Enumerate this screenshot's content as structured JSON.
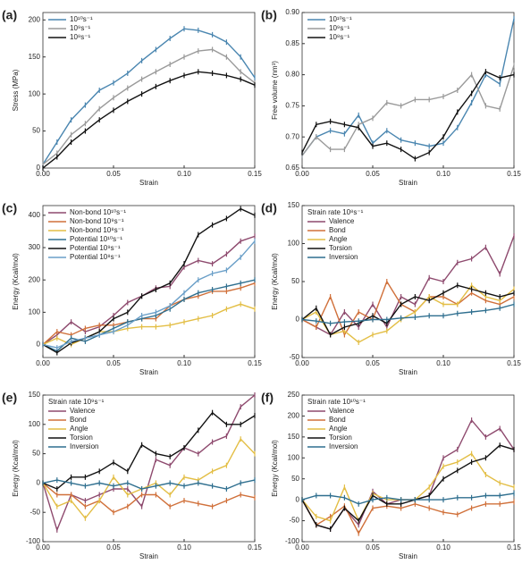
{
  "chart_data": [
    {
      "type": "line",
      "panel": "(a)",
      "x_label": "Strain",
      "y_label": "Stress (MPa)",
      "x": [
        0,
        0.01,
        0.02,
        0.03,
        0.04,
        0.05,
        0.06,
        0.07,
        0.08,
        0.09,
        0.1,
        0.11,
        0.12,
        0.13,
        0.14,
        0.15
      ],
      "xlim": [
        0,
        0.15
      ],
      "xticks": [
        {
          "value": 0,
          "label": "0.00"
        },
        0.05,
        {
          "value": 0.1,
          "label": "0.10"
        },
        0.15
      ],
      "ylim": [
        0,
        210
      ],
      "yticks": [
        0,
        50,
        100,
        150,
        200
      ],
      "series": [
        {
          "name": "10¹⁰s⁻¹",
          "color": "#4a86b0",
          "values": [
            5,
            35,
            65,
            85,
            105,
            115,
            128,
            145,
            160,
            175,
            188,
            186,
            180,
            170,
            150,
            122
          ]
        },
        {
          "name": "10⁹s⁻¹",
          "color": "#9a9a9a",
          "values": [
            5,
            20,
            45,
            60,
            80,
            95,
            108,
            120,
            130,
            140,
            150,
            158,
            160,
            150,
            130,
            115
          ]
        },
        {
          "name": "10⁸s⁻¹",
          "color": "#111111",
          "values": [
            0,
            15,
            35,
            50,
            65,
            78,
            90,
            100,
            110,
            118,
            125,
            130,
            128,
            125,
            120,
            112
          ]
        }
      ]
    },
    {
      "type": "line",
      "panel": "(b)",
      "x_label": "Strain",
      "y_label": "Free volume (nm³)",
      "x": [
        0,
        0.01,
        0.02,
        0.03,
        0.04,
        0.05,
        0.06,
        0.07,
        0.08,
        0.09,
        0.1,
        0.11,
        0.12,
        0.13,
        0.14,
        0.15
      ],
      "xlim": [
        0,
        0.15
      ],
      "xticks": [
        {
          "value": 0,
          "label": "0.00"
        },
        0.05,
        {
          "value": 0.1,
          "label": "0.10"
        },
        0.15
      ],
      "ylim": [
        0.65,
        0.9
      ],
      "yticks": [
        0.65,
        {
          "value": 0.7,
          "label": "0.70"
        },
        0.75,
        {
          "value": 0.8,
          "label": "0.80"
        },
        0.85,
        {
          "value": 0.9,
          "label": "0.90"
        }
      ],
      "series": [
        {
          "name": "10¹⁰s⁻¹",
          "color": "#4a86b0",
          "values": [
            0.67,
            0.7,
            0.71,
            0.705,
            0.735,
            0.69,
            0.71,
            0.695,
            0.69,
            0.685,
            0.69,
            0.715,
            0.755,
            0.8,
            0.785,
            0.89
          ]
        },
        {
          "name": "10⁹s⁻¹",
          "color": "#9a9a9a",
          "values": [
            0.67,
            0.7,
            0.68,
            0.68,
            0.72,
            0.73,
            0.755,
            0.75,
            0.76,
            0.76,
            0.765,
            0.775,
            0.8,
            0.75,
            0.745,
            0.815
          ]
        },
        {
          "name": "10⁸s⁻¹",
          "color": "#111111",
          "values": [
            0.675,
            0.72,
            0.725,
            0.72,
            0.715,
            0.685,
            0.69,
            0.68,
            0.665,
            0.675,
            0.7,
            0.74,
            0.77,
            0.805,
            0.795,
            0.8
          ]
        }
      ]
    },
    {
      "type": "line",
      "panel": "(c)",
      "x_label": "Strain",
      "y_label": "Energy (Kcal/mol)",
      "x": [
        0,
        0.01,
        0.02,
        0.03,
        0.04,
        0.05,
        0.06,
        0.07,
        0.08,
        0.09,
        0.1,
        0.11,
        0.12,
        0.13,
        0.14,
        0.15
      ],
      "xlim": [
        0,
        0.15
      ],
      "xticks": [
        {
          "value": 0,
          "label": "0.00"
        },
        0.05,
        {
          "value": 0.1,
          "label": "0.10"
        },
        0.15
      ],
      "ylim": [
        -40,
        430
      ],
      "yticks": [
        0,
        100,
        200,
        300,
        400
      ],
      "series": [
        {
          "name": "Non-bond 10¹⁰s⁻¹",
          "color": "#8e4a6e",
          "values": [
            0,
            30,
            70,
            40,
            55,
            90,
            130,
            150,
            175,
            180,
            240,
            260,
            250,
            280,
            320,
            335
          ]
        },
        {
          "name": "Non-bond 10⁹s⁻¹",
          "color": "#d0703a",
          "values": [
            0,
            40,
            30,
            50,
            60,
            60,
            70,
            80,
            80,
            120,
            140,
            150,
            165,
            165,
            175,
            190
          ]
        },
        {
          "name": "Non-bond 10⁸s⁻¹",
          "color": "#e3be45",
          "values": [
            0,
            20,
            0,
            20,
            40,
            40,
            50,
            55,
            55,
            60,
            70,
            80,
            90,
            110,
            125,
            110
          ]
        },
        {
          "name": "Potential 10¹⁰s⁻¹",
          "color": "#2f6f8f",
          "values": [
            0,
            -20,
            20,
            10,
            30,
            50,
            70,
            80,
            90,
            110,
            140,
            160,
            170,
            180,
            190,
            200
          ]
        },
        {
          "name": "Potential 10⁹s⁻¹",
          "color": "#111111",
          "values": [
            0,
            -25,
            5,
            20,
            40,
            80,
            100,
            150,
            170,
            190,
            250,
            340,
            370,
            390,
            420,
            400
          ]
        },
        {
          "name": "Potential 10⁸s⁻¹",
          "color": "#6a9fc8",
          "values": [
            0,
            -10,
            10,
            20,
            30,
            40,
            60,
            90,
            100,
            120,
            160,
            200,
            220,
            230,
            270,
            320
          ]
        }
      ]
    },
    {
      "type": "line",
      "panel": "(d)",
      "x_label": "Strain",
      "y_label": "Energy (Kcal/mol)",
      "legend_title": "Strain rate 10⁸s⁻¹",
      "x": [
        0,
        0.01,
        0.02,
        0.03,
        0.04,
        0.05,
        0.06,
        0.07,
        0.08,
        0.09,
        0.1,
        0.11,
        0.12,
        0.13,
        0.14,
        0.15
      ],
      "xlim": [
        0,
        0.15
      ],
      "xticks": [
        {
          "value": 0,
          "label": "0.00"
        },
        0.05,
        {
          "value": 0.1,
          "label": "0.10"
        },
        0.15
      ],
      "ylim": [
        -50,
        150
      ],
      "yticks": [
        -50,
        0,
        50,
        100,
        150
      ],
      "series": [
        {
          "name": "Valence",
          "color": "#8e4a6e",
          "values": [
            0,
            -10,
            -20,
            10,
            -10,
            20,
            -10,
            30,
            20,
            55,
            50,
            75,
            80,
            95,
            60,
            110
          ]
        },
        {
          "name": "Bond",
          "color": "#d0703a",
          "values": [
            0,
            -10,
            30,
            -20,
            10,
            0,
            50,
            20,
            10,
            30,
            30,
            20,
            35,
            25,
            20,
            30
          ]
        },
        {
          "name": "Angle",
          "color": "#e3be45",
          "values": [
            0,
            10,
            -20,
            -15,
            -30,
            -20,
            -15,
            0,
            10,
            30,
            20,
            20,
            45,
            30,
            25,
            40
          ]
        },
        {
          "name": "Torsion",
          "color": "#111111",
          "values": [
            0,
            15,
            -20,
            -10,
            -5,
            5,
            -5,
            20,
            30,
            25,
            35,
            45,
            40,
            35,
            30,
            35
          ]
        },
        {
          "name": "Inversion",
          "color": "#2f6f8f",
          "values": [
            0,
            -2,
            -5,
            -3,
            -2,
            0,
            0,
            2,
            3,
            5,
            5,
            8,
            10,
            12,
            15,
            20
          ]
        }
      ]
    },
    {
      "type": "line",
      "panel": "(e)",
      "x_label": "Strain",
      "y_label": "Energy (Kcal/mol)",
      "legend_title": "Strain rate 10⁹s⁻¹",
      "x": [
        0,
        0.01,
        0.02,
        0.03,
        0.04,
        0.05,
        0.06,
        0.07,
        0.08,
        0.09,
        0.1,
        0.11,
        0.12,
        0.13,
        0.14,
        0.15
      ],
      "xlim": [
        0,
        0.15
      ],
      "xticks": [
        {
          "value": 0,
          "label": "0.00"
        },
        0.05,
        {
          "value": 0.1,
          "label": "0.10"
        },
        0.15
      ],
      "ylim": [
        -100,
        150
      ],
      "yticks": [
        -100,
        -50,
        0,
        50,
        100,
        150
      ],
      "series": [
        {
          "name": "Valence",
          "color": "#8e4a6e",
          "values": [
            0,
            -80,
            -20,
            -30,
            -20,
            -10,
            -10,
            -40,
            40,
            30,
            60,
            50,
            70,
            80,
            130,
            150
          ]
        },
        {
          "name": "Bond",
          "color": "#d0703a",
          "values": [
            0,
            -20,
            -20,
            -40,
            -30,
            -50,
            -40,
            -20,
            -20,
            -40,
            -30,
            -35,
            -40,
            -30,
            -20,
            -25
          ]
        },
        {
          "name": "Angle",
          "color": "#e3be45",
          "values": [
            0,
            -40,
            -30,
            -60,
            -30,
            10,
            -20,
            -10,
            0,
            -20,
            10,
            5,
            20,
            30,
            75,
            50
          ]
        },
        {
          "name": "Torsion",
          "color": "#111111",
          "values": [
            0,
            -10,
            10,
            10,
            20,
            35,
            20,
            65,
            50,
            45,
            60,
            90,
            120,
            100,
            100,
            115
          ]
        },
        {
          "name": "Inversion",
          "color": "#2f6f8f",
          "values": [
            0,
            5,
            0,
            -5,
            0,
            -5,
            0,
            -10,
            -5,
            0,
            -5,
            0,
            -5,
            -10,
            0,
            5
          ]
        }
      ]
    },
    {
      "type": "line",
      "panel": "(f)",
      "x_label": "Strain",
      "y_label": "Energy (Kcal/mol)",
      "legend_title": "Strain rate 10¹⁰s⁻¹",
      "x": [
        0,
        0.01,
        0.02,
        0.03,
        0.04,
        0.05,
        0.06,
        0.07,
        0.08,
        0.09,
        0.1,
        0.11,
        0.12,
        0.13,
        0.14,
        0.15
      ],
      "xlim": [
        0,
        0.15
      ],
      "xticks": [
        {
          "value": 0,
          "label": "0.00"
        },
        0.05,
        {
          "value": 0.1,
          "label": "0.10"
        },
        0.15
      ],
      "ylim": [
        -100,
        250
      ],
      "yticks": [
        -100,
        -50,
        0,
        50,
        100,
        150,
        200,
        250
      ],
      "series": [
        {
          "name": "Valence",
          "color": "#8e4a6e",
          "values": [
            0,
            -60,
            -70,
            -20,
            -60,
            20,
            -10,
            0,
            0,
            10,
            100,
            120,
            190,
            150,
            170,
            120
          ]
        },
        {
          "name": "Bond",
          "color": "#d0703a",
          "values": [
            0,
            -60,
            -40,
            -15,
            -80,
            -20,
            -15,
            -20,
            -10,
            -20,
            -30,
            -35,
            -20,
            -10,
            -10,
            -5
          ]
        },
        {
          "name": "Angle",
          "color": "#e3be45",
          "values": [
            0,
            -40,
            -50,
            30,
            -50,
            15,
            0,
            0,
            0,
            30,
            80,
            90,
            110,
            60,
            40,
            30
          ]
        },
        {
          "name": "Torsion",
          "color": "#111111",
          "values": [
            0,
            -60,
            -70,
            -20,
            -50,
            10,
            -10,
            -10,
            0,
            10,
            50,
            70,
            90,
            100,
            130,
            120
          ]
        },
        {
          "name": "Inversion",
          "color": "#2f6f8f",
          "values": [
            0,
            10,
            10,
            5,
            -10,
            0,
            5,
            0,
            0,
            0,
            0,
            5,
            5,
            10,
            10,
            15
          ]
        }
      ]
    }
  ]
}
